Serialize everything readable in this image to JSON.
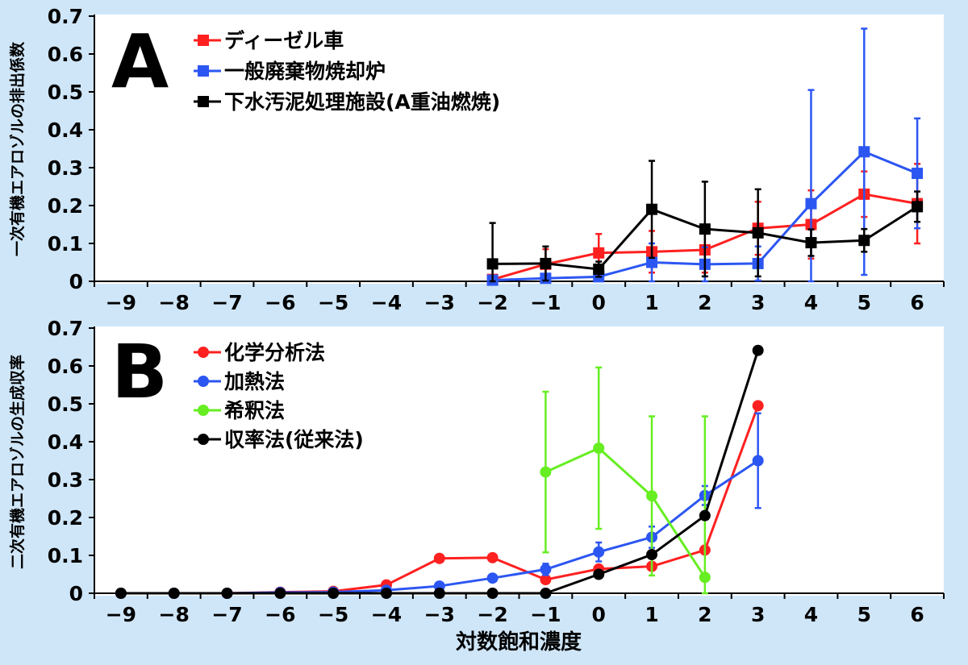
{
  "chart_data": [
    {
      "type": "line",
      "panel_label": "A",
      "ylabel": "一次有機エアロゾルの排出係数",
      "xlabel": "",
      "xlim": [
        -9.5,
        6.5
      ],
      "ylim": [
        0,
        0.7
      ],
      "xticks": [
        "−9",
        "−8",
        "−7",
        "−6",
        "−5",
        "−4",
        "−3",
        "−2",
        "−1",
        "0",
        "1",
        "2",
        "3",
        "4",
        "5",
        "6"
      ],
      "yticks": [
        "0",
        "0.1",
        "0.2",
        "0.3",
        "0.4",
        "0.5",
        "0.6",
        "0.7"
      ],
      "marker": "square",
      "series": [
        {
          "name": "ディーゼル車",
          "color": "#ff2020",
          "x": [
            -2,
            -1,
            0,
            1,
            2,
            3,
            4,
            5,
            6
          ],
          "y": [
            0.005,
            0.045,
            0.075,
            0.078,
            0.083,
            0.14,
            0.15,
            0.23,
            0.205
          ],
          "err": [
            0.003,
            0.04,
            0.05,
            0.055,
            0.06,
            0.07,
            0.09,
            0.06,
            0.105
          ]
        },
        {
          "name": "一般廃棄物焼却炉",
          "color": "#2c56f2",
          "x": [
            -2,
            -1,
            0,
            1,
            2,
            3,
            4,
            5,
            6
          ],
          "y": [
            0.003,
            0.008,
            0.012,
            0.05,
            0.045,
            0.047,
            0.205,
            0.342,
            0.285
          ],
          "err": [
            0.002,
            0.003,
            0.004,
            0.05,
            0.045,
            0.045,
            0.3,
            0.325,
            0.145
          ]
        },
        {
          "name": "下水汚泥処理施設(A重油燃焼)",
          "color": "#000000",
          "x": [
            -2,
            -1,
            0,
            1,
            2,
            3,
            4,
            5,
            6
          ],
          "y": [
            0.046,
            0.047,
            0.032,
            0.19,
            0.138,
            0.128,
            0.102,
            0.108,
            0.197
          ],
          "err": [
            0.108,
            0.045,
            0.02,
            0.128,
            0.125,
            0.115,
            0.035,
            0.03,
            0.04
          ]
        }
      ]
    },
    {
      "type": "line",
      "panel_label": "B",
      "ylabel": "二次有機エアロゾルの生成収率",
      "xlabel": "対数飽和濃度",
      "xlim": [
        -9.5,
        6.5
      ],
      "ylim": [
        0,
        0.7
      ],
      "xticks": [
        "−9",
        "−8",
        "−7",
        "−6",
        "−5",
        "−4",
        "−3",
        "−2",
        "−1",
        "0",
        "1",
        "2",
        "3",
        "4",
        "5",
        "6"
      ],
      "yticks": [
        "0",
        "0.1",
        "0.2",
        "0.3",
        "0.4",
        "0.5",
        "0.6",
        "0.7"
      ],
      "marker": "circle",
      "series": [
        {
          "name": "化学分析法",
          "color": "#ff2020",
          "x": [
            -9,
            -8,
            -7,
            -6,
            -5,
            -4,
            -3,
            -2,
            -1,
            0,
            1,
            2,
            3
          ],
          "y": [
            0,
            0,
            0,
            0.003,
            0.005,
            0.022,
            0.092,
            0.094,
            0.036,
            0.064,
            0.071,
            0.114,
            0.495
          ],
          "err": [
            0,
            0,
            0,
            0,
            0,
            0,
            0,
            0,
            0,
            0,
            0,
            0,
            0
          ]
        },
        {
          "name": "加熱法",
          "color": "#2c56f2",
          "x": [
            -9,
            -8,
            -7,
            -6,
            -5,
            -4,
            -3,
            -2,
            -1,
            0,
            1,
            2,
            3
          ],
          "y": [
            0,
            0,
            0,
            0.002,
            0.003,
            0.008,
            0.019,
            0.04,
            0.063,
            0.109,
            0.148,
            0.258,
            0.35
          ],
          "err": [
            0,
            0,
            0,
            0,
            0,
            0,
            0,
            0,
            0.015,
            0.025,
            0.028,
            0.025,
            0.125
          ]
        },
        {
          "name": "希釈法",
          "color": "#66ee22",
          "x": [
            -1,
            0,
            1,
            2
          ],
          "y": [
            0.32,
            0.383,
            0.257,
            0.042
          ],
          "err": [
            0.212,
            0.213,
            0.21,
            0.425
          ]
        },
        {
          "name": "収率法(従来法)",
          "color": "#000000",
          "x": [
            -9,
            -8,
            -7,
            -6,
            -5,
            -4,
            -3,
            -2,
            -1,
            0,
            1,
            2,
            3
          ],
          "y": [
            0,
            0,
            0,
            0,
            0,
            0,
            0,
            0,
            0,
            0.05,
            0.102,
            0.205,
            0.641
          ],
          "err": [
            0,
            0,
            0,
            0,
            0,
            0,
            0,
            0,
            0,
            0,
            0,
            0,
            0
          ]
        }
      ]
    }
  ]
}
